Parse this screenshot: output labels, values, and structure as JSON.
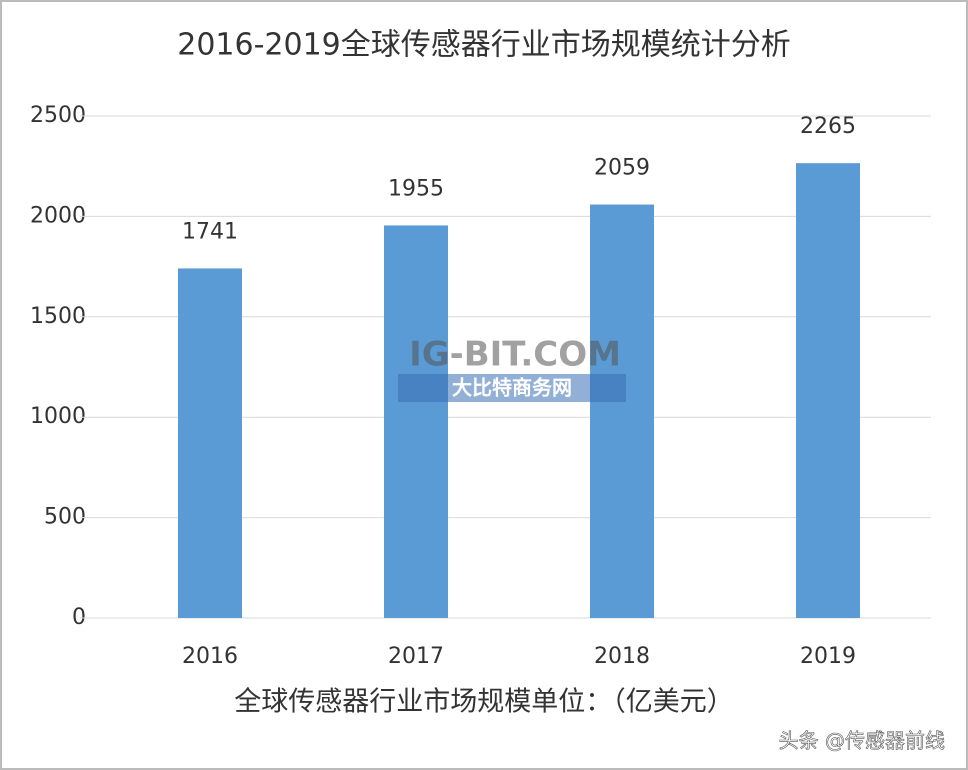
{
  "chart_data": {
    "type": "bar",
    "title": "2016-2019全球传感器行业市场规模统计分析",
    "categories": [
      "2016",
      "2017",
      "2018",
      "2019"
    ],
    "values": [
      1741,
      1955,
      2059,
      2265
    ],
    "color": "#5b9bd5",
    "ylim": [
      0,
      2500
    ],
    "yticks": [
      0,
      500,
      1000,
      1500,
      2000,
      2500
    ],
    "grid": true,
    "x_label": "全球传感器行业市场规模单位：（亿美元）",
    "watermark": {
      "site": "IG-BIT.COM",
      "name": "大比特商务网"
    },
    "credit": "头条 @传感器前线"
  }
}
